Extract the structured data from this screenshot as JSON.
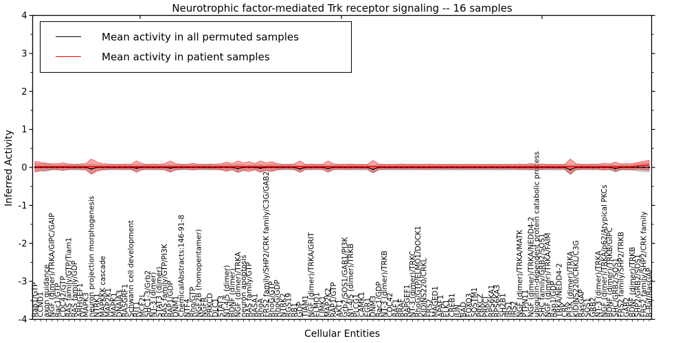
{
  "figure": {
    "title": "Neurotrophic factor-mediated Trk receptor signaling -- 16 samples",
    "xlabel": "Cellular Entities",
    "ylabel": "Inferred Activity"
  },
  "chart_data": {
    "type": "line",
    "title": "Neurotrophic factor-mediated Trk receptor signaling -- 16 samples",
    "xlabel": "Cellular Entities",
    "ylabel": "Inferred Activity",
    "ylim": [
      -4,
      4
    ],
    "yticks": [
      4,
      3,
      2,
      1,
      0,
      -1,
      -2,
      -3,
      -4
    ],
    "grid": false,
    "legend_position": "upper left",
    "colors": {
      "permuted_line": "#000000",
      "patient_line": "#ff0000",
      "patient_band_fill": "rgba(255,60,60,0.45)",
      "patient_band_edge": "rgba(215,40,40,0.75)",
      "permuted_band_fill": "rgba(150,150,150,0.5)"
    },
    "categories": [
      "Rap1/GTP",
      "CCND1",
      "axon guidance",
      "NGF (dimer)/TRKA/GIPC/GAIP",
      "Rac1/GTP",
      "CDC42/GTP",
      "RAS family/GTP/Tiam1",
      "RAS family/GDP",
      "ARHGEF1",
      "MAPK3",
      "neuron projection morphogenesis",
      "NTRK1",
      "MAPKKK cascade",
      "MAP2K1",
      "MAPK1",
      "DNAJA3",
      "RASGRF1",
      "Schwann cell development",
      "RIT1",
      "MCF2L",
      "SHC1-3/Grb2",
      "NT-3 (dimer)",
      "STAT3 (dimer)",
      "RAS family/GTP/PI3K",
      "RAP1/GDP",
      "DNM1",
      "ChemicalAbstracts:146-91-8",
      "NTF4",
      "Rho/GTP",
      "NGF2B (homopentamer)",
      "NGFR",
      "PRKCD",
      "DLC1",
      "STAT3",
      "NT-4/5 (dimer)",
      "BDNF (dimer)",
      "NGF (dimer)/TRKA",
      "neuron apoptosis",
      "RAS family/GTP",
      "RASA1",
      "RhoA",
      "FRS2 family/SHP2/CRK family/C3G/GAB2",
      "RhoG/GTP",
      "RhoG/GDP",
      "NTRK2",
      "RGS19",
      "RB1",
      "GDP",
      "TIAM1",
      "NGF (dimer)/TRKA/GRIT",
      "ELMO1",
      "LIMK1",
      "MAP2K2",
      "RAP1/GTP",
      "AKT1",
      "Grb2/SOS1/GAB1/PI3K",
      "NT-4/5 (dimer)/TRKB",
      "PLCG1",
      "CAMK1",
      "EGR1",
      "DNM3",
      "Rac1/GDP",
      "NT-3 (dimer)/TRKB",
      "CDC42",
      "RAF1",
      "BRAF",
      "RAPGEF1",
      "NT-3 (dimer)/TRKC",
      "RhoG/GTP/ELMO1/DOCK1",
      "KIDINS220/CRKL",
      "FRS2",
      "MAGED1",
      "APAF1",
      "ELK1",
      "CREB1",
      "JUN",
      "BAD",
      "FOXO3",
      "SQSTM1",
      "PRKCZ",
      "PRKCI",
      "RPS6KA1",
      "RPS6KA3",
      "SH2B1",
      "IRS1",
      "IRS2",
      "NGF (dimer)/TRKA/MATK",
      "PTPN11",
      "NGF (dimer)/TRKA/NEDD4-2",
      "ubiquitin-dependent protein catabolic process",
      "SHC family/GRB2/SOS1",
      "NGF (dimer)/TRKA/FAIM",
      "Rap1/GDP",
      "TRKA/NEDD4-2",
      "CRK",
      "PI3K (dimer)/TRKA",
      "KIDINS220/CRKL/C3G",
      "RasGAP",
      "SOS1",
      "GRB2",
      "NT-3 (dimer)/TRKA",
      "NGF (dimer)/TRKA/p62/Atypical PKCs",
      "BDNF (dimer)/TRKB/GIPC",
      "SHC/GRB2/SOS1",
      "FRS2 family/SHP2/TRKB",
      "GAB2",
      "BDNF (dimer)/TRKB",
      "SHP2/GRB2/SOS1",
      "FRS2 family/SHP2/CRK family",
      "B-Raf/RasGAP"
    ],
    "series": [
      {
        "name": "Mean activity in all permuted samples",
        "color": "#000000",
        "values": [
          0,
          0,
          0,
          0,
          0,
          0,
          0,
          0,
          0,
          0,
          -0.04,
          0,
          0,
          0,
          0,
          0,
          0,
          0,
          -0.02,
          0,
          0,
          0,
          0,
          0,
          -0.02,
          0,
          0,
          0,
          0,
          0,
          0,
          0,
          0,
          0,
          0,
          0,
          -0.03,
          0,
          0,
          0,
          -0.02,
          0,
          0,
          0,
          0,
          0,
          0,
          -0.04,
          0,
          0,
          0,
          0,
          -0.03,
          0,
          0,
          0,
          0,
          0,
          0,
          0,
          -0.05,
          0,
          0,
          0,
          0,
          0,
          0,
          0,
          0,
          0,
          0,
          0,
          0,
          0,
          0,
          0,
          0,
          0,
          0,
          0,
          0,
          0,
          0,
          0,
          0,
          0,
          0,
          0,
          0,
          0,
          0,
          0,
          0,
          0,
          0,
          -0.06,
          0,
          0,
          0,
          0,
          0,
          0,
          0,
          -0.03,
          0,
          0,
          0,
          0,
          0,
          0
        ],
        "band": [
          0.1,
          0.09,
          0.11,
          0.07,
          0.07,
          0.07,
          0.07,
          0.07,
          0.07,
          0.07,
          0.13,
          0.07,
          0.07,
          0.07,
          0.07,
          0.07,
          0.07,
          0.07,
          0.09,
          0.07,
          0.07,
          0.07,
          0.07,
          0.07,
          0.09,
          0.07,
          0.07,
          0.07,
          0.07,
          0.07,
          0.07,
          0.07,
          0.07,
          0.07,
          0.09,
          0.07,
          0.11,
          0.07,
          0.07,
          0.07,
          0.1,
          0.07,
          0.09,
          0.07,
          0.07,
          0.07,
          0.07,
          0.09,
          0.07,
          0.07,
          0.07,
          0.07,
          0.09,
          0.07,
          0.07,
          0.07,
          0.07,
          0.07,
          0.07,
          0.07,
          0.1,
          0.07,
          0.07,
          0.07,
          0.07,
          0.07,
          0.07,
          0.07,
          0.07,
          0.07,
          0.07,
          0.07,
          0.07,
          0.07,
          0.07,
          0.07,
          0.07,
          0.07,
          0.07,
          0.07,
          0.07,
          0.07,
          0.07,
          0.07,
          0.07,
          0.07,
          0.07,
          0.07,
          0.07,
          0.07,
          0.07,
          0.07,
          0.07,
          0.07,
          0.07,
          0.13,
          0.07,
          0.07,
          0.07,
          0.07,
          0.07,
          0.07,
          0.07,
          0.09,
          0.07,
          0.07,
          0.07,
          0.1,
          0.11,
          0.12
        ]
      },
      {
        "name": "Mean activity in patient samples",
        "color": "#ff0000",
        "values": [
          0.02,
          0.02,
          0.02,
          0.02,
          0.02,
          0.02,
          0.02,
          0.02,
          0.02,
          0.02,
          0.02,
          0.02,
          0.02,
          0.02,
          0.02,
          0.02,
          0.02,
          0.02,
          0.02,
          0.02,
          0.02,
          0.02,
          0.02,
          0.02,
          0.02,
          0.02,
          0.02,
          0.02,
          0.02,
          0.02,
          0.02,
          0.02,
          0.02,
          0.02,
          0.02,
          0.02,
          0.02,
          0.02,
          0.02,
          0.02,
          0.02,
          0.02,
          0.02,
          0.02,
          0.02,
          0.02,
          0.02,
          0.02,
          0.02,
          0.02,
          0.02,
          0.02,
          0.02,
          0.02,
          0.02,
          0.02,
          0.02,
          0.02,
          0.02,
          0.02,
          0.02,
          0.02,
          0.02,
          0.02,
          0.02,
          0.02,
          0.02,
          0.02,
          0.02,
          0.02,
          0.02,
          0.02,
          0.02,
          0.02,
          0.02,
          0.02,
          0.02,
          0.02,
          0.02,
          0.02,
          0.02,
          0.02,
          0.02,
          0.02,
          0.02,
          0.02,
          0.02,
          0.02,
          0.02,
          0.02,
          0.02,
          0.02,
          0.02,
          0.02,
          0.02,
          0.02,
          0.02,
          0.02,
          0.02,
          0.02,
          0.02,
          0.02,
          0.02,
          0.02,
          0.02,
          0.02,
          0.02,
          0.04,
          0.05,
          0.06
        ],
        "band": [
          0.14,
          0.11,
          0.09,
          0.07,
          0.08,
          0.1,
          0.07,
          0.06,
          0.07,
          0.08,
          0.2,
          0.12,
          0.08,
          0.07,
          0.06,
          0.06,
          0.07,
          0.06,
          0.15,
          0.08,
          0.06,
          0.07,
          0.06,
          0.08,
          0.15,
          0.08,
          0.06,
          0.06,
          0.09,
          0.06,
          0.06,
          0.07,
          0.06,
          0.08,
          0.12,
          0.08,
          0.15,
          0.1,
          0.13,
          0.08,
          0.15,
          0.1,
          0.13,
          0.08,
          0.06,
          0.06,
          0.07,
          0.15,
          0.06,
          0.07,
          0.06,
          0.06,
          0.15,
          0.07,
          0.06,
          0.06,
          0.07,
          0.06,
          0.06,
          0.06,
          0.16,
          0.07,
          0.06,
          0.06,
          0.06,
          0.07,
          0.06,
          0.06,
          0.06,
          0.06,
          0.07,
          0.06,
          0.06,
          0.06,
          0.06,
          0.06,
          0.06,
          0.06,
          0.06,
          0.06,
          0.06,
          0.06,
          0.06,
          0.06,
          0.06,
          0.06,
          0.07,
          0.06,
          0.08,
          0.06,
          0.07,
          0.06,
          0.06,
          0.06,
          0.06,
          0.2,
          0.08,
          0.06,
          0.06,
          0.07,
          0.06,
          0.09,
          0.07,
          0.12,
          0.07,
          0.08,
          0.08,
          0.09,
          0.11,
          0.13
        ]
      }
    ]
  }
}
